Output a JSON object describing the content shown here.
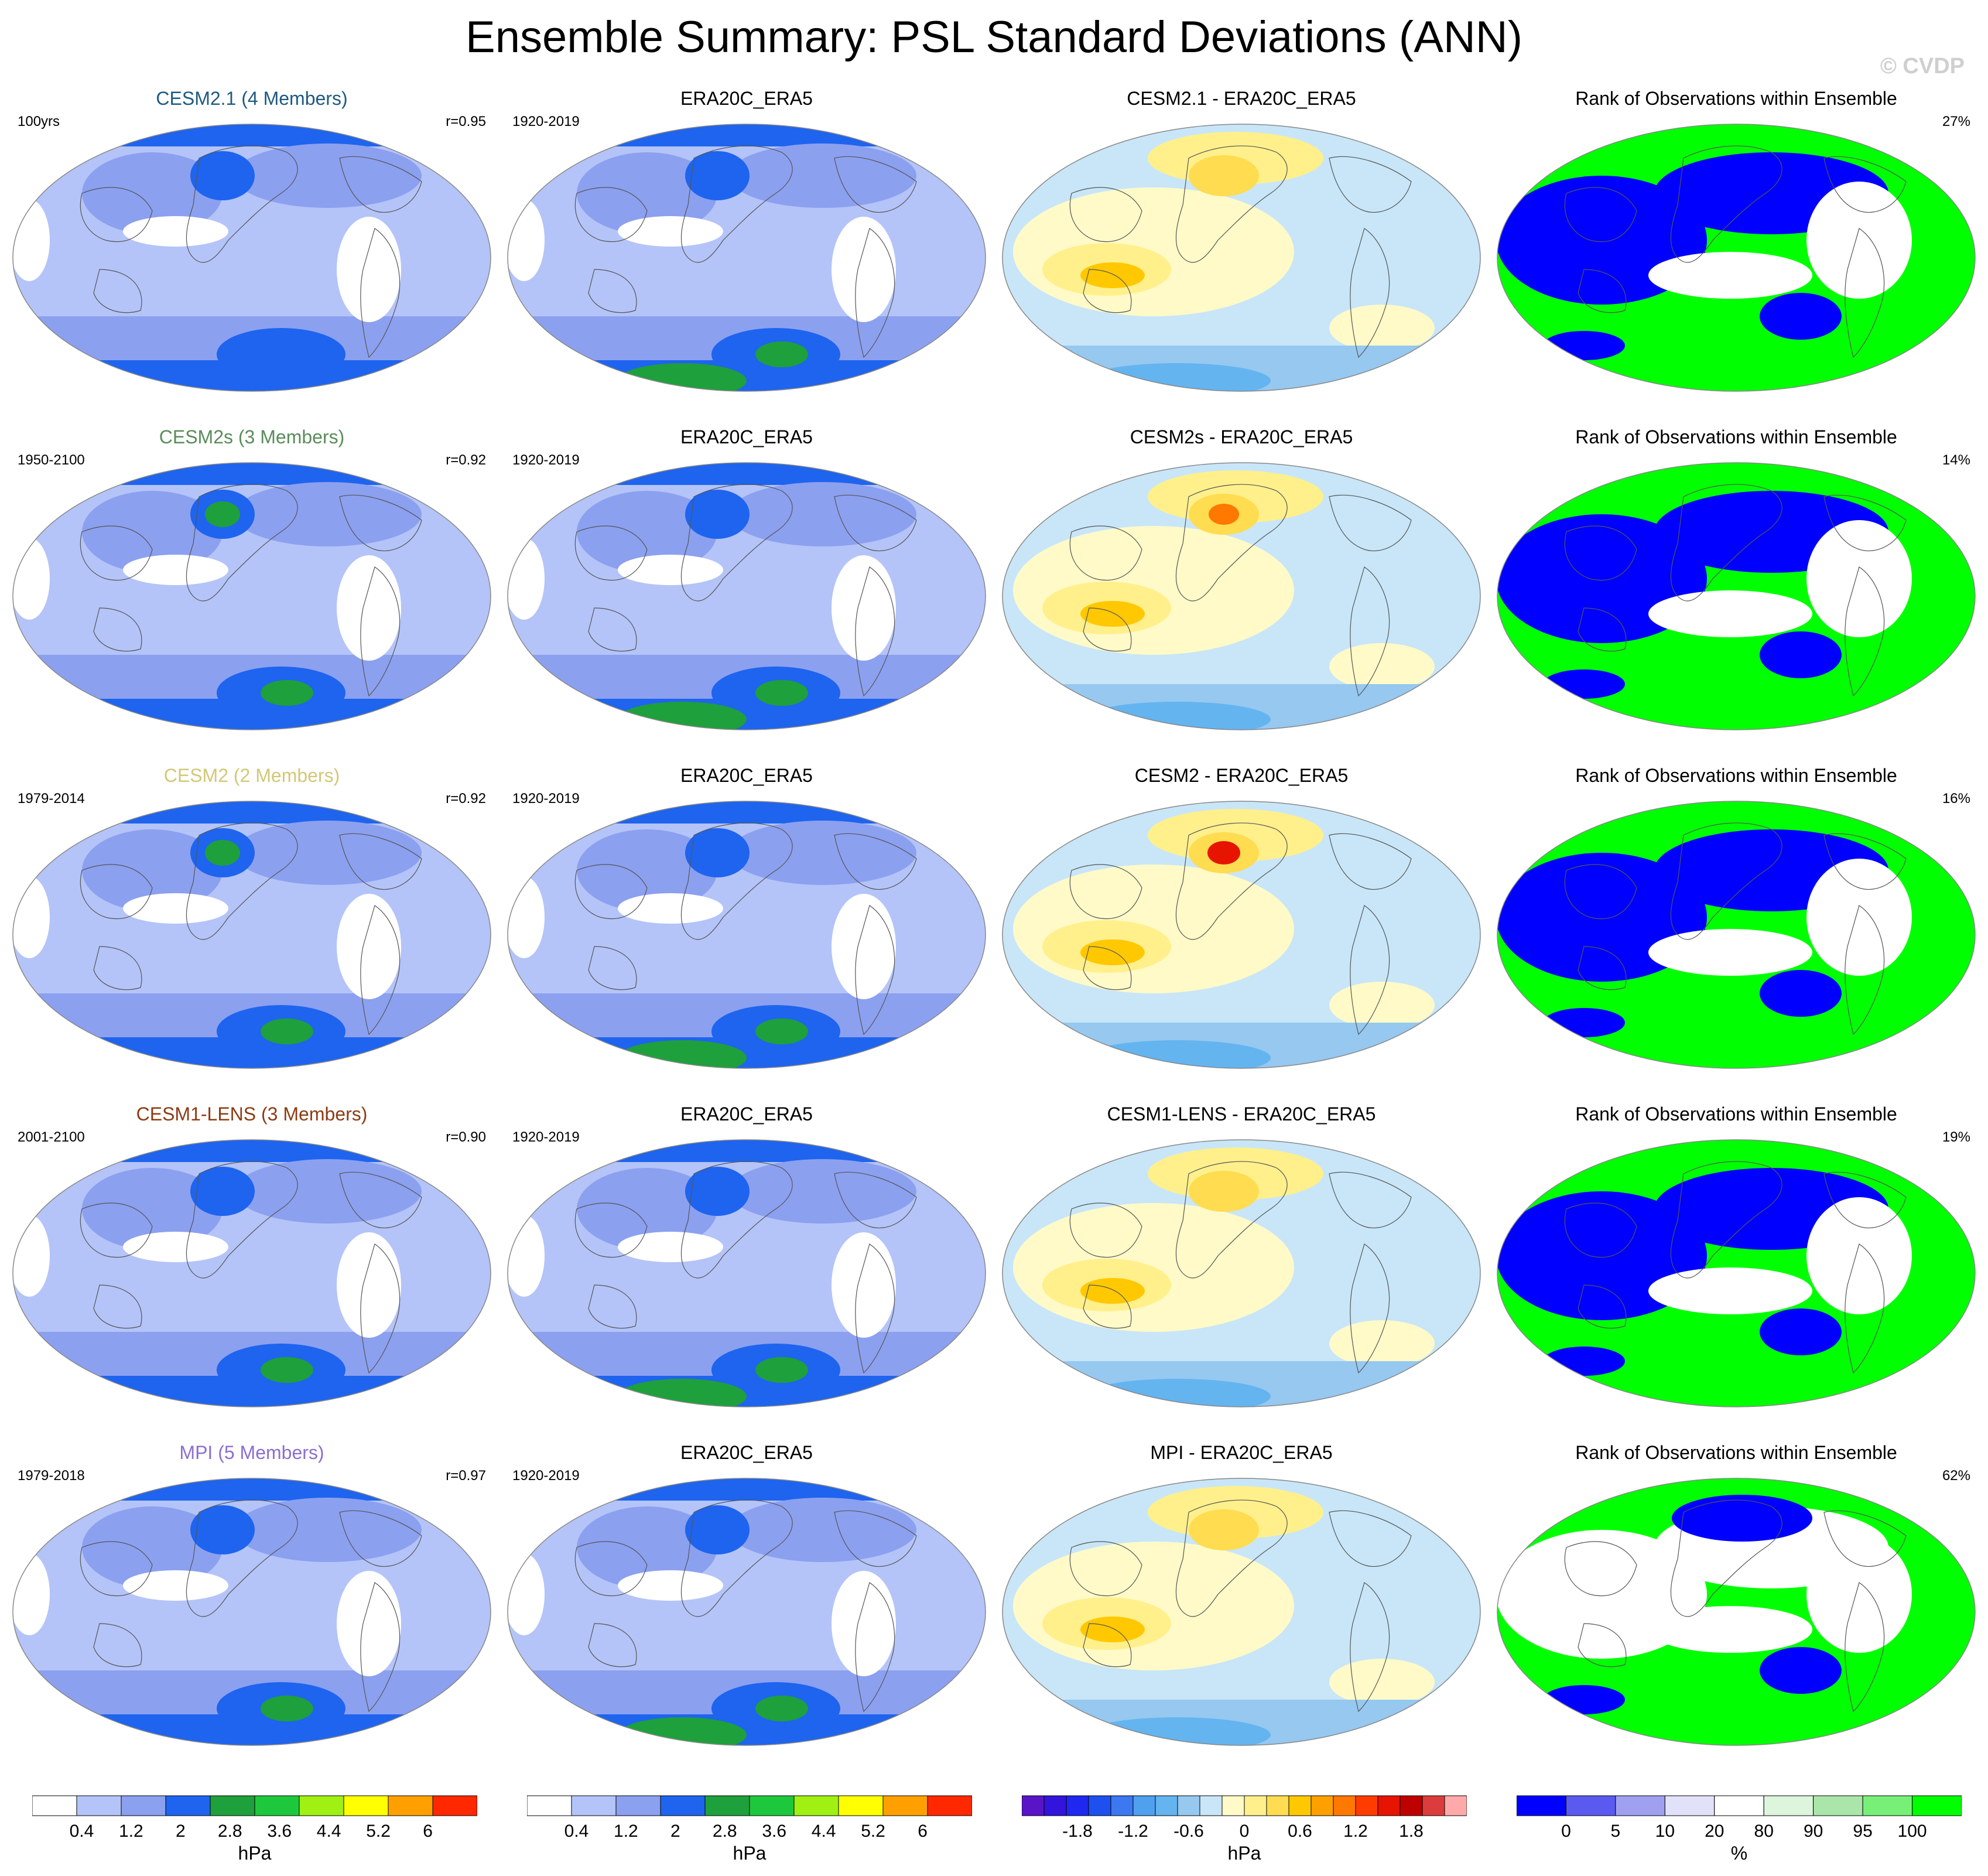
{
  "title": "Ensemble Summary: PSL Standard Deviations (ANN)",
  "copyright": "© CVDP",
  "colors": {
    "sd": [
      "#ffffff",
      "#b4c4f8",
      "#8ca0f0",
      "#1e64ee",
      "#1ea03c",
      "#1ec83c",
      "#a0f014",
      "#ffff00",
      "#ffa000",
      "#ff2800"
    ],
    "diff": [
      "#5a14c8",
      "#3214dc",
      "#1e28f0",
      "#1e50f0",
      "#3c78f0",
      "#50a0f0",
      "#64b4f0",
      "#96c8f0",
      "#c8e6f8",
      "#fffac8",
      "#fff08c",
      "#ffdc50",
      "#ffc800",
      "#ffa000",
      "#ff7800",
      "#ff3c00",
      "#e61400",
      "#be0000",
      "#dc3c3c",
      "#ffaaaa"
    ],
    "rank": [
      "#0000ff",
      "#5a5af0",
      "#a0a0f0",
      "#e1e1fa",
      "#ffffff",
      "#dcf5dc",
      "#aae6aa",
      "#78f078",
      "#00ff00"
    ]
  },
  "rows": [
    {
      "model": {
        "title": "CESM2.1 (4 Members)",
        "title_color": "#1e5a82",
        "left": "100yrs",
        "right": "r=0.95"
      },
      "obs": {
        "title": "ERA20C_ERA5",
        "left": "1920-2019"
      },
      "diff": {
        "title": "CESM2.1 - ERA20C_ERA5"
      },
      "rank": {
        "title": "Rank of Observations within Ensemble",
        "right": "27%"
      }
    },
    {
      "model": {
        "title": "CESM2s (3 Members)",
        "title_color": "#5a8c5a",
        "left": "1950-2100",
        "right": "r=0.92"
      },
      "obs": {
        "title": "ERA20C_ERA5",
        "left": "1920-2019"
      },
      "diff": {
        "title": "CESM2s - ERA20C_ERA5"
      },
      "rank": {
        "title": "Rank of Observations within Ensemble",
        "right": "14%"
      }
    },
    {
      "model": {
        "title": "CESM2 (2 Members)",
        "title_color": "#d2c878",
        "left": "1979-2014",
        "right": "r=0.92"
      },
      "obs": {
        "title": "ERA20C_ERA5",
        "left": "1920-2019"
      },
      "diff": {
        "title": "CESM2 - ERA20C_ERA5"
      },
      "rank": {
        "title": "Rank of Observations within Ensemble",
        "right": "16%"
      }
    },
    {
      "model": {
        "title": "CESM1-LENS (3 Members)",
        "title_color": "#8c3c14",
        "left": "2001-2100",
        "right": "r=0.90"
      },
      "obs": {
        "title": "ERA20C_ERA5",
        "left": "1920-2019"
      },
      "diff": {
        "title": "CESM1-LENS - ERA20C_ERA5"
      },
      "rank": {
        "title": "Rank of Observations within Ensemble",
        "right": "19%"
      }
    },
    {
      "model": {
        "title": "MPI (5 Members)",
        "title_color": "#8c6ed2",
        "left": "1979-2018",
        "right": "r=0.97"
      },
      "obs": {
        "title": "ERA20C_ERA5",
        "left": "1920-2019"
      },
      "diff": {
        "title": "MPI - ERA20C_ERA5"
      },
      "rank": {
        "title": "Rank of Observations within Ensemble",
        "right": "62%"
      }
    }
  ],
  "colorbars": {
    "sd": {
      "labels": [
        "0.4",
        "1.2",
        "2",
        "2.8",
        "3.6",
        "4.4",
        "5.2",
        "6"
      ],
      "unit": "hPa"
    },
    "diff": {
      "labels": [
        "-1.8",
        "-1.2",
        "-0.6",
        "0",
        "0.6",
        "1.2",
        "1.8"
      ],
      "unit": "hPa"
    },
    "rank": {
      "labels": [
        "0",
        "5",
        "10",
        "20",
        "80",
        "90",
        "95",
        "100"
      ],
      "unit": "%"
    }
  }
}
